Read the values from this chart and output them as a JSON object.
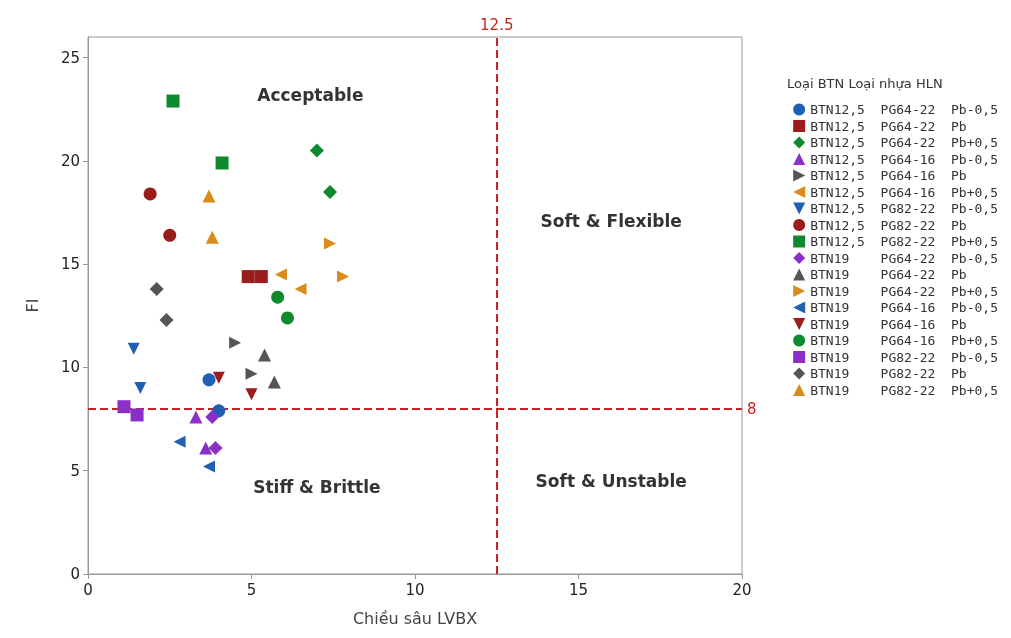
{
  "chart_data": {
    "type": "scatter",
    "xlabel": "Chiều sâu LVBX",
    "ylabel": "FI",
    "legend_title": "Loại BTN Loại nhựa HLN",
    "legend": "right",
    "grid": false,
    "xlim": [
      0,
      20
    ],
    "xticks": [
      0,
      5,
      10,
      15,
      20
    ],
    "ylim": [
      0,
      26
    ],
    "yticks": [
      0,
      5,
      10,
      15,
      20,
      25
    ],
    "series": [
      {
        "name": "BTN12,5 PG64-22 Pb-0,5",
        "color": "#1f5fb4",
        "marker": "circle",
        "x": [
          3.7,
          4.0
        ],
        "values": [
          9.4,
          7.9
        ]
      },
      {
        "name": "BTN12,5 PG64-22 Pb",
        "color": "#9b1c1c",
        "marker": "square",
        "x": [
          4.9,
          5.3
        ],
        "values": [
          14.4,
          14.4
        ]
      },
      {
        "name": "BTN12,5 PG64-22 Pb+0,5",
        "color": "#0e8a2e",
        "marker": "diamond",
        "x": [
          7.0,
          7.4
        ],
        "values": [
          20.5,
          18.5
        ]
      },
      {
        "name": "BTN12,5 PG64-16 Pb-0,5",
        "color": "#8b2fc9",
        "marker": "triangle",
        "x": [
          3.3,
          3.6
        ],
        "values": [
          7.6,
          6.1
        ]
      },
      {
        "name": "BTN12,5 PG64-16 Pb",
        "color": "#555555",
        "marker": "triangle-right",
        "x": [
          4.5,
          5.0
        ],
        "values": [
          11.2,
          9.7
        ]
      },
      {
        "name": "BTN12,5 PG64-16 Pb+0,5",
        "color": "#d98c1a",
        "marker": "triangle-left",
        "x": [
          5.9,
          6.5
        ],
        "values": [
          14.5,
          13.8
        ]
      },
      {
        "name": "BTN12,5 PG82-22 Pb-0,5",
        "color": "#1f5fb4",
        "marker": "triangle-down",
        "x": [
          1.4,
          1.6
        ],
        "values": [
          10.9,
          9.0
        ]
      },
      {
        "name": "BTN12,5 PG82-22 Pb",
        "color": "#9b1c1c",
        "marker": "circle",
        "x": [
          1.9,
          2.5
        ],
        "values": [
          18.4,
          16.4
        ]
      },
      {
        "name": "BTN12,5 PG82-22 Pb+0,5",
        "color": "#0e8a2e",
        "marker": "square",
        "x": [
          2.6,
          4.1
        ],
        "values": [
          22.9,
          19.9
        ]
      },
      {
        "name": "BTN19 PG64-22 Pb-0,5",
        "color": "#8b2fc9",
        "marker": "diamond",
        "x": [
          3.8,
          3.9
        ],
        "values": [
          7.6,
          6.1
        ]
      },
      {
        "name": "BTN19 PG64-22 Pb",
        "color": "#555555",
        "marker": "triangle",
        "x": [
          5.4,
          5.7
        ],
        "values": [
          10.6,
          9.3
        ]
      },
      {
        "name": "BTN19 PG64-22 Pb+0,5",
        "color": "#d98c1a",
        "marker": "triangle-right",
        "x": [
          7.4,
          7.8
        ],
        "values": [
          16.0,
          14.4
        ]
      },
      {
        "name": "BTN19 PG64-16 Pb-0,5",
        "color": "#1f5fb4",
        "marker": "triangle-left",
        "x": [
          2.8,
          3.7
        ],
        "values": [
          6.4,
          5.2
        ]
      },
      {
        "name": "BTN19 PG64-16 Pb",
        "color": "#9b1c1c",
        "marker": "triangle-down",
        "x": [
          4.0,
          5.0
        ],
        "values": [
          9.5,
          8.7
        ]
      },
      {
        "name": "BTN19 PG64-16 Pb+0,5",
        "color": "#0e8a2e",
        "marker": "circle",
        "x": [
          5.8,
          6.1
        ],
        "values": [
          13.4,
          12.4
        ]
      },
      {
        "name": "BTN19 PG82-22 Pb-0,5",
        "color": "#8b2fc9",
        "marker": "square",
        "x": [
          1.1,
          1.5
        ],
        "values": [
          8.1,
          7.7
        ]
      },
      {
        "name": "BTN19 PG82-22 Pb",
        "color": "#555555",
        "marker": "diamond",
        "x": [
          2.1,
          2.4
        ],
        "values": [
          13.8,
          12.3
        ]
      },
      {
        "name": "BTN19 PG82-22 Pb+0,5",
        "color": "#d98c1a",
        "marker": "triangle",
        "x": [
          3.7,
          3.8
        ],
        "values": [
          18.3,
          16.3
        ]
      }
    ],
    "ref_lines": [
      {
        "axis": "x",
        "value": 12.5,
        "label": "12.5",
        "color": "#cc1f1f",
        "line_style": "dashed"
      },
      {
        "axis": "y",
        "value": 8,
        "label": "8",
        "color": "#cc1f1f",
        "line_style": "dashed"
      }
    ],
    "annotations": [
      "Acceptable",
      "Soft & Flexible",
      "Stiff & Brittle",
      "Soft & Unstable"
    ]
  }
}
